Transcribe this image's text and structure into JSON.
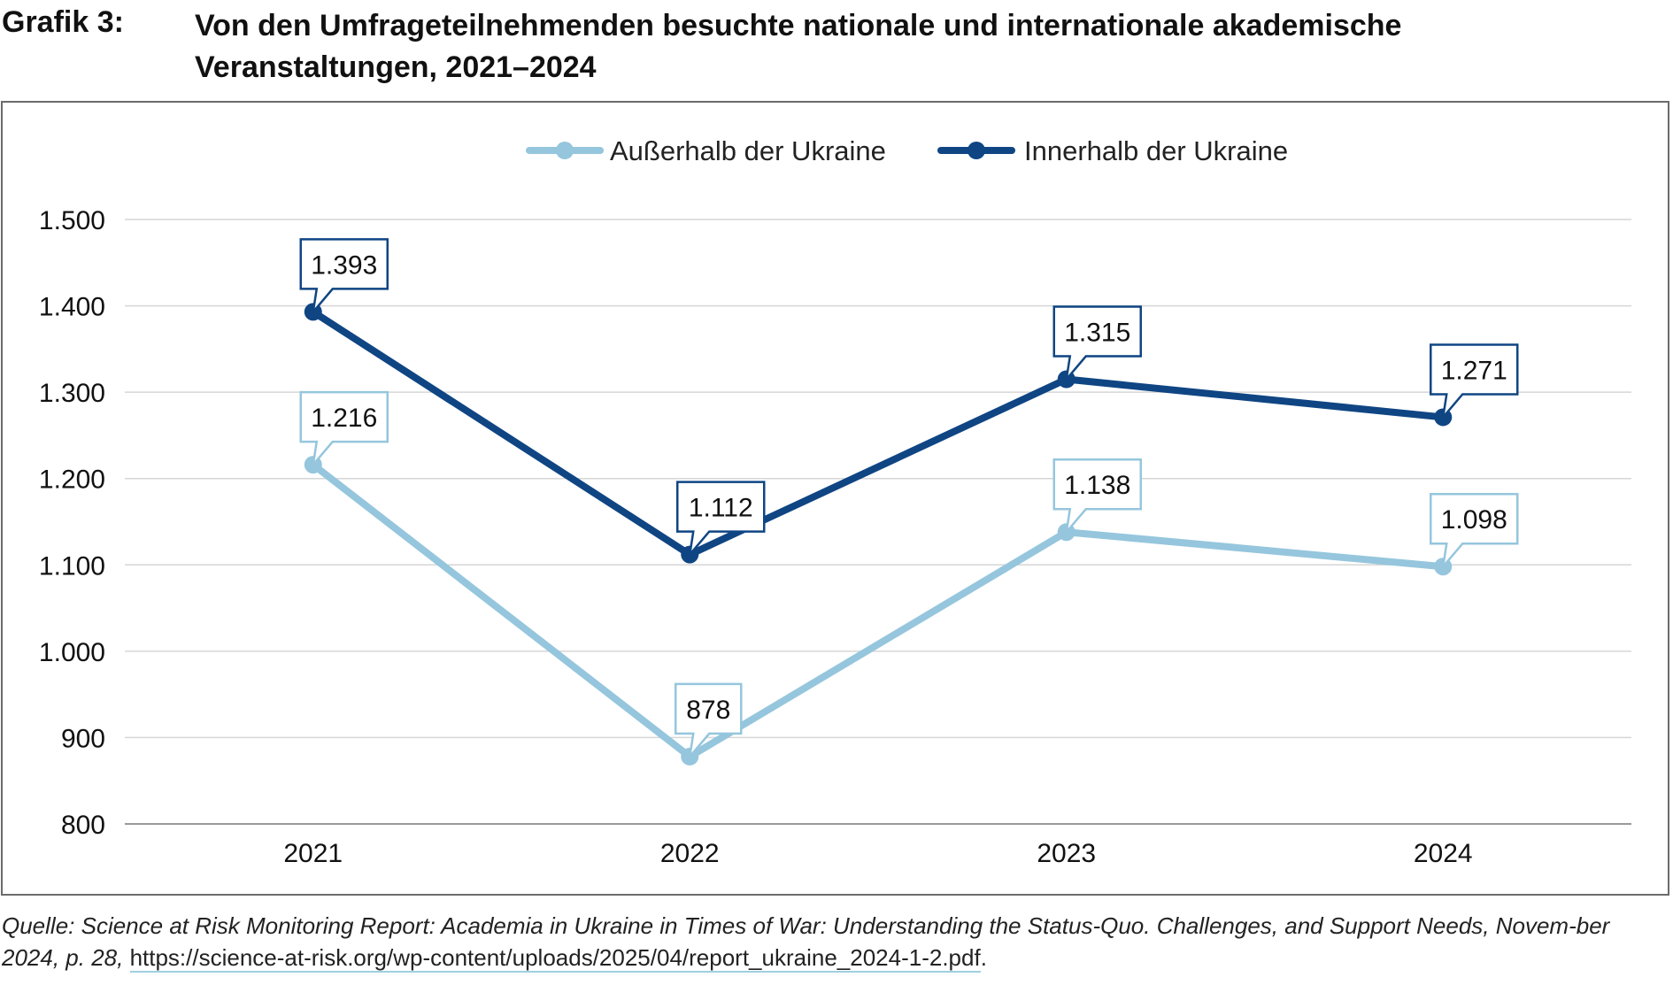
{
  "header": {
    "label": "Grafik 3:",
    "title": "Von den Umfrageteilnehmenden besuchte nationale und internationale akademische Veranstaltungen, 2021–2024"
  },
  "colors": {
    "outside": "#95c6dd",
    "inside": "#0f4583",
    "grid": "#d6d6d6",
    "axis": "#9a9a9a"
  },
  "chart_data": {
    "type": "line",
    "title": "Von den Umfrageteilnehmenden besuchte nationale und internationale akademische Veranstaltungen, 2021–2024",
    "categories": [
      "2021",
      "2022",
      "2023",
      "2024"
    ],
    "series": [
      {
        "name": "Außerhalb der Ukraine",
        "values": [
          1216,
          878,
          1138,
          1098
        ],
        "labels": [
          "1.216",
          "878",
          "1.138",
          "1.098"
        ],
        "color": "#95c6dd"
      },
      {
        "name": "Innerhalb der Ukraine",
        "values": [
          1393,
          1112,
          1315,
          1271
        ],
        "labels": [
          "1.393",
          "1.112",
          "1.315",
          "1.271"
        ],
        "color": "#0f4583"
      }
    ],
    "ylim": [
      800,
      1500
    ],
    "yticks": [
      800,
      900,
      1000,
      1100,
      1200,
      1300,
      1400,
      1500
    ],
    "ytick_labels": [
      "800",
      "900",
      "1.000",
      "1.100",
      "1.200",
      "1.300",
      "1.400",
      "1.500"
    ],
    "xlabel": "",
    "ylabel": "",
    "grid": true,
    "legend": "top-center"
  },
  "source": {
    "prefix": "Quelle: Science at Risk Monitoring Report: Academia in Ukraine in Times of War: Understanding the Status-Quo. Challenges, and Support Needs, Novem-ber 2024, p. 28, ",
    "url": "https://science-at-risk.org/wp-content/uploads/2025/04/report_ukraine_2024-1-2.pdf",
    "suffix": "."
  }
}
